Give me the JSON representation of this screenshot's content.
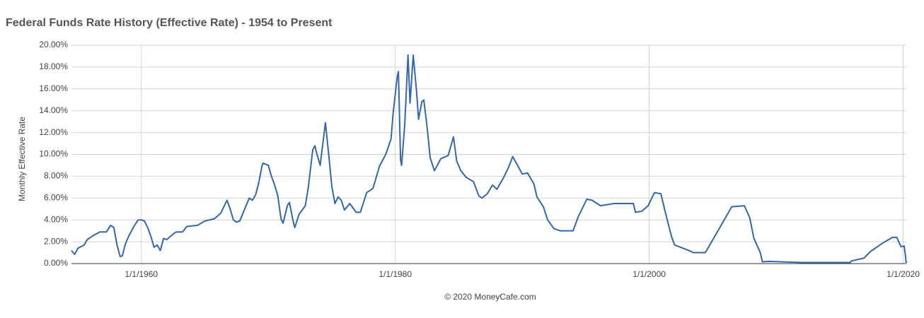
{
  "chart_data": {
    "type": "line",
    "title": "Federal Funds Rate History (Effective Rate) - 1954 to Present",
    "y_label": "Monthly Effective Rate",
    "footer": "©  2020 MoneyCafe.com",
    "xlim": [
      "1954-07-01",
      "2020-04-01"
    ],
    "xticks": [
      {
        "value": "1960-01-01",
        "label": "1/1/1960"
      },
      {
        "value": "1980-01-01",
        "label": "1/1/1980"
      },
      {
        "value": "2000-01-01",
        "label": "1/1/2000"
      },
      {
        "value": "2020-01-01",
        "label": "1/1/2020"
      }
    ],
    "ylim": [
      0,
      20
    ],
    "yticks": [
      {
        "value": 0,
        "label": "0.00%"
      },
      {
        "value": 2,
        "label": "2.00%"
      },
      {
        "value": 4,
        "label": "4.00%"
      },
      {
        "value": 6,
        "label": "6.00%"
      },
      {
        "value": 8,
        "label": "8.00%"
      },
      {
        "value": 10,
        "label": "10.00%"
      },
      {
        "value": 12,
        "label": "12.00%"
      },
      {
        "value": 14,
        "label": "14.00%"
      },
      {
        "value": 16,
        "label": "16.00%"
      },
      {
        "value": 18,
        "label": "18.00%"
      },
      {
        "value": 20,
        "label": "20.00%"
      }
    ],
    "grid": true,
    "series": [
      {
        "name": "Effective Rate",
        "color": "#3466b0",
        "x": [
          "1954-07-01",
          "1954-10-01",
          "1955-01-01",
          "1955-07-01",
          "1955-10-01",
          "1956-04-01",
          "1956-10-01",
          "1957-04-01",
          "1957-08-01",
          "1957-11-01",
          "1958-02-01",
          "1958-05-01",
          "1958-07-01",
          "1958-10-01",
          "1959-01-01",
          "1959-06-01",
          "1959-10-01",
          "1960-01-01",
          "1960-04-01",
          "1960-07-01",
          "1960-10-01",
          "1961-01-01",
          "1961-04-01",
          "1961-07-01",
          "1961-10-01",
          "1962-01-01",
          "1962-07-01",
          "1962-10-01",
          "1963-04-01",
          "1963-08-01",
          "1964-06-01",
          "1965-01-01",
          "1965-10-01",
          "1966-04-01",
          "1966-07-01",
          "1966-10-01",
          "1967-01-01",
          "1967-04-01",
          "1967-07-01",
          "1967-10-01",
          "1968-01-01",
          "1968-07-01",
          "1968-10-01",
          "1969-01-01",
          "1969-04-01",
          "1969-07-01",
          "1969-08-01",
          "1970-01-01",
          "1970-04-01",
          "1970-07-01",
          "1970-10-01",
          "1971-01-01",
          "1971-03-01",
          "1971-07-01",
          "1971-09-01",
          "1971-12-01",
          "1972-02-01",
          "1972-06-01",
          "1972-12-01",
          "1973-03-01",
          "1973-07-01",
          "1973-09-01",
          "1973-11-01",
          "1974-02-01",
          "1974-07-01",
          "1974-10-01",
          "1975-01-01",
          "1975-04-01",
          "1975-07-01",
          "1975-10-01",
          "1976-01-01",
          "1976-06-01",
          "1976-12-01",
          "1977-04-01",
          "1977-10-01",
          "1978-04-01",
          "1978-10-01",
          "1979-04-01",
          "1979-09-01",
          "1979-11-01",
          "1980-03-01",
          "1980-04-01",
          "1980-06-01",
          "1980-07-01",
          "1980-10-01",
          "1981-01-01",
          "1981-03-01",
          "1981-06-01",
          "1981-09-01",
          "1981-11-01",
          "1982-02-01",
          "1982-04-01",
          "1982-07-01",
          "1982-10-01",
          "1983-02-01",
          "1983-08-01",
          "1984-03-01",
          "1984-08-01",
          "1984-11-01",
          "1985-03-01",
          "1985-08-01",
          "1986-03-01",
          "1986-08-01",
          "1986-11-01",
          "1987-04-01",
          "1987-09-01",
          "1988-01-01",
          "1988-07-01",
          "1988-12-01",
          "1989-04-01",
          "1989-08-01",
          "1990-01-01",
          "1990-06-01",
          "1990-12-01",
          "1991-03-01",
          "1991-09-01",
          "1992-01-01",
          "1992-07-01",
          "1993-01-01",
          "1994-01-01",
          "1994-06-01",
          "1995-02-01",
          "1995-07-01",
          "1996-03-01",
          "1997-04-01",
          "1998-10-01",
          "1998-12-01",
          "1999-06-01",
          "1999-12-01",
          "2000-06-01",
          "2000-12-01",
          "2001-04-01",
          "2001-10-01",
          "2002-01-01",
          "2002-12-01",
          "2003-07-01",
          "2004-06-01",
          "2005-06-01",
          "2006-07-01",
          "2007-07-01",
          "2007-12-01",
          "2008-04-01",
          "2008-10-01",
          "2008-12-01",
          "2009-06-01",
          "2012-01-01",
          "2015-11-01",
          "2015-12-01",
          "2016-12-01",
          "2017-06-01",
          "2018-06-01",
          "2019-03-01",
          "2019-07-01",
          "2019-11-01",
          "2020-02-01",
          "2020-04-01"
        ],
        "values": [
          1.2,
          0.85,
          1.4,
          1.7,
          2.2,
          2.6,
          2.9,
          2.9,
          3.5,
          3.3,
          1.7,
          0.65,
          0.7,
          1.8,
          2.5,
          3.4,
          4.0,
          4.0,
          3.9,
          3.3,
          2.5,
          1.5,
          1.7,
          1.2,
          2.3,
          2.2,
          2.7,
          2.9,
          2.9,
          3.4,
          3.5,
          3.9,
          4.1,
          4.6,
          5.2,
          5.8,
          5.0,
          4.0,
          3.8,
          3.9,
          4.6,
          6.0,
          5.8,
          6.3,
          7.4,
          8.9,
          9.2,
          9.0,
          8.0,
          7.2,
          6.2,
          4.1,
          3.7,
          5.3,
          5.6,
          4.1,
          3.3,
          4.5,
          5.3,
          7.1,
          10.4,
          10.8,
          10.0,
          9.0,
          12.9,
          10.1,
          7.1,
          5.5,
          6.1,
          5.8,
          4.9,
          5.5,
          4.7,
          4.7,
          6.5,
          6.9,
          8.9,
          10.0,
          11.4,
          13.8,
          17.2,
          17.6,
          9.5,
          9.0,
          12.8,
          19.1,
          14.7,
          19.1,
          15.9,
          13.2,
          14.8,
          15.0,
          12.6,
          9.7,
          8.5,
          9.6,
          9.9,
          11.6,
          9.4,
          8.5,
          7.9,
          7.5,
          6.2,
          6.0,
          6.4,
          7.2,
          6.8,
          7.8,
          8.8,
          9.8,
          9.1,
          8.2,
          8.3,
          7.3,
          6.1,
          5.2,
          4.0,
          3.2,
          3.0,
          3.0,
          4.3,
          5.9,
          5.8,
          5.3,
          5.5,
          5.5,
          4.7,
          4.8,
          5.3,
          6.5,
          6.4,
          4.8,
          2.5,
          1.7,
          1.3,
          1.0,
          1.0,
          3.0,
          5.2,
          5.3,
          4.2,
          2.3,
          1.0,
          0.16,
          0.2,
          0.1,
          0.1,
          0.24,
          0.5,
          1.1,
          1.9,
          2.4,
          2.4,
          1.55,
          1.6,
          0.05
        ]
      }
    ]
  }
}
